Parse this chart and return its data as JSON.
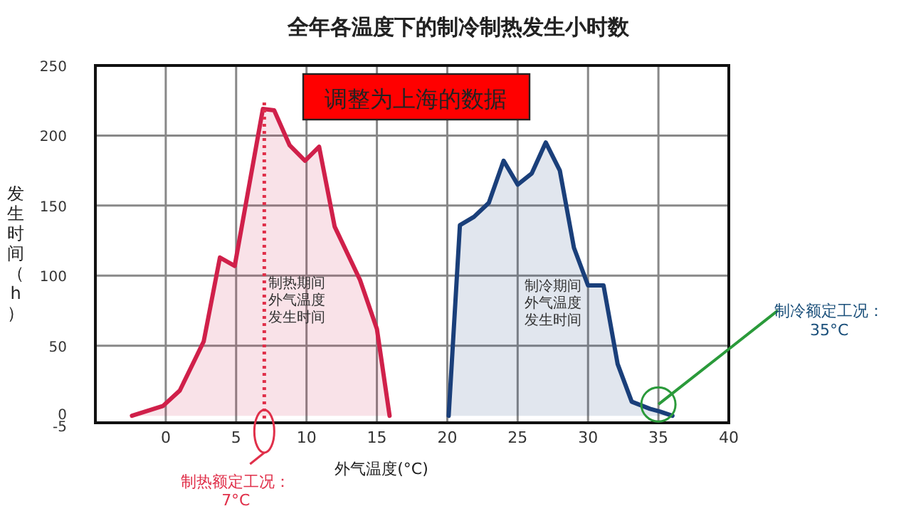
{
  "chart_data": {
    "type": "area",
    "title": "全年各温度下的制冷制热发生小时数",
    "xlabel": "外气温度(°C)",
    "ylabel": "发生时间（h）",
    "xlim": [
      -5,
      40
    ],
    "xticks": [
      0,
      5,
      10,
      15,
      20,
      25,
      30,
      35,
      40
    ],
    "ylim": [
      -5,
      250
    ],
    "yticks": [
      -5,
      0,
      50,
      100,
      150,
      200,
      250
    ],
    "grid": true,
    "series": [
      {
        "color": "#d0204a",
        "x": [
          -2.4,
          -0.2,
          1,
          2.7,
          3.85,
          4.9,
          6.65,
          6.9,
          7.7,
          8.8,
          9.9,
          10.9,
          12,
          13.8,
          15,
          15.9
        ],
        "values": [
          0,
          7,
          18,
          53,
          113,
          107,
          205,
          219,
          218,
          193,
          182,
          192,
          135,
          97,
          62,
          0
        ]
      },
      {
        "color": "#1a3f7a",
        "x": [
          20.1,
          20.9,
          21.9,
          22.95,
          24,
          25,
          26,
          27,
          28,
          29,
          30,
          31.1,
          32.1,
          33.1,
          34.4,
          35.1,
          36
        ],
        "values": [
          0,
          136,
          142,
          152,
          182,
          165,
          173,
          195,
          175,
          120,
          93,
          93,
          37,
          10,
          5,
          3,
          0
        ]
      }
    ],
    "ref_lines": [
      {
        "axis": "x",
        "value": 7,
        "label": "制热额定工况：\n7°C",
        "color": "#e0304a",
        "line_style": "dotted"
      }
    ],
    "annotations": [
      "调整为上海的数据",
      "制热期间外气温度发生时间",
      "制冷期间外气温度发生时间",
      {
        "text": "制冷额定工况：\n35°C",
        "x": 35,
        "y": 0
      }
    ]
  }
}
